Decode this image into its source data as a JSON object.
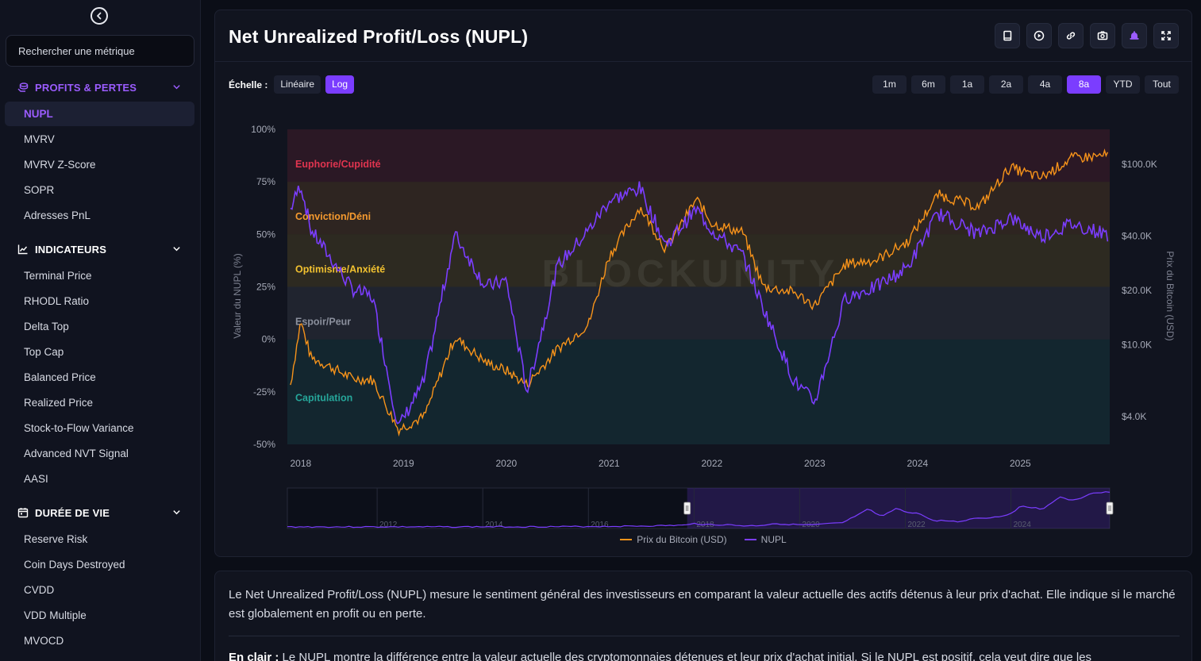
{
  "sidebar": {
    "search_placeholder": "Rechercher une métrique",
    "sections": [
      {
        "title": "PROFITS & PERTES",
        "icon": "coins-icon",
        "items": [
          "NUPL",
          "MVRV",
          "MVRV Z-Score",
          "SOPR",
          "Adresses PnL"
        ]
      },
      {
        "title": "INDICATEURS",
        "icon": "chart-line-icon",
        "items": [
          "Terminal Price",
          "RHODL Ratio",
          "Delta Top",
          "Top Cap",
          "Balanced Price",
          "Realized Price",
          "Stock-to-Flow Variance",
          "Advanced NVT Signal",
          "AASI"
        ]
      },
      {
        "title": "DURÉE DE VIE",
        "icon": "calendar-icon",
        "items": [
          "Reserve Risk",
          "Coin Days Destroyed",
          "CVDD",
          "VDD Multiple",
          "MVOCD"
        ]
      }
    ],
    "active_item": "NUPL"
  },
  "main": {
    "title": "Net Unrealized Profit/Loss (NUPL)",
    "scale_label": "Échelle :",
    "scale_options": [
      "Linéaire",
      "Log"
    ],
    "scale_active": "Log",
    "ranges": [
      "1m",
      "6m",
      "1a",
      "2a",
      "4a",
      "8a",
      "YTD",
      "Tout"
    ],
    "range_active": "8a"
  },
  "chart_data": {
    "type": "line",
    "watermark": "BLOCKUNITY",
    "ylabel_left": "Valeur du NUPL (%)",
    "ylabel_right": "Prix du Bitcoin (USD)",
    "left_ticks": [
      "100%",
      "75%",
      "50%",
      "25%",
      "0%",
      "-25%",
      "-50%"
    ],
    "left_range": [
      -50,
      100
    ],
    "right_ticks": [
      "$100.0K",
      "$40.0K",
      "$20.0K",
      "$10.0K",
      "$4.0K"
    ],
    "x_ticks": [
      "2018",
      "2019",
      "2020",
      "2021",
      "2022",
      "2023",
      "2024",
      "2025"
    ],
    "zones": [
      {
        "label": "Euphorie/Cupidité",
        "from": 75,
        "to": 100,
        "color": "#e0344f"
      },
      {
        "label": "Conviction/Déni",
        "from": 50,
        "to": 75,
        "color": "#f59a2f"
      },
      {
        "label": "Optimisme/Anxiété",
        "from": 25,
        "to": 50,
        "color": "#f2c230"
      },
      {
        "label": "Espoir/Peur",
        "from": 0,
        "to": 25,
        "color": "#8a8f9c"
      },
      {
        "label": "Capitulation",
        "from": -50,
        "to": 0,
        "color": "#26a69a"
      }
    ],
    "navigator_ticks": [
      "2012",
      "2014",
      "2016",
      "2018",
      "2020",
      "2022",
      "2024"
    ],
    "series": [
      {
        "name": "Prix du Bitcoin (USD)",
        "color": "#f7931a",
        "x": [
          2017.9,
          2018.0,
          2018.1,
          2018.3,
          2018.5,
          2018.7,
          2018.95,
          2019.2,
          2019.5,
          2019.8,
          2020.0,
          2020.2,
          2020.5,
          2020.8,
          2021.0,
          2021.3,
          2021.55,
          2021.85,
          2022.0,
          2022.3,
          2022.5,
          2022.8,
          2023.0,
          2023.3,
          2023.6,
          2023.9,
          2024.2,
          2024.6,
          2024.9,
          2025.2,
          2025.5,
          2025.85
        ],
        "y": [
          6000,
          13500,
          8500,
          7500,
          6500,
          6400,
          3400,
          4000,
          11000,
          8000,
          7200,
          6000,
          9500,
          13000,
          31000,
          58000,
          34000,
          64000,
          47000,
          42000,
          21000,
          19500,
          16500,
          28000,
          29500,
          37000,
          68000,
          58000,
          96000,
          84000,
          108000,
          112000
        ]
      },
      {
        "name": "NUPL",
        "color": "#7b3dff",
        "x": [
          2017.9,
          2018.0,
          2018.1,
          2018.3,
          2018.5,
          2018.7,
          2018.95,
          2019.2,
          2019.5,
          2019.8,
          2020.0,
          2020.2,
          2020.5,
          2020.8,
          2021.0,
          2021.3,
          2021.55,
          2021.85,
          2022.0,
          2022.3,
          2022.5,
          2022.8,
          2023.0,
          2023.3,
          2023.6,
          2023.9,
          2024.2,
          2024.6,
          2024.9,
          2025.2,
          2025.5,
          2025.85
        ],
        "y": [
          62,
          74,
          52,
          38,
          24,
          20,
          -42,
          -20,
          50,
          25,
          28,
          -25,
          35,
          52,
          66,
          72,
          45,
          62,
          52,
          40,
          15,
          -20,
          -30,
          20,
          25,
          34,
          60,
          50,
          58,
          49,
          55,
          50
        ]
      }
    ]
  },
  "legend": [
    "Prix du Bitcoin (USD)",
    "NUPL"
  ],
  "description": {
    "paragraph": "Le Net Unrealized Profit/Loss (NUPL) mesure le sentiment général des investisseurs en comparant la valeur actuelle des actifs détenus à leur prix d'achat. Elle indique si le marché est globalement en profit ou en perte.",
    "second_label": "En clair :",
    "second_text": " Le NUPL montre la différence entre la valeur actuelle des cryptomonnaies détenues et leur prix d'achat initial. Si le NUPL est positif, cela veut dire que les"
  },
  "colors": {
    "accent": "#7b3dff",
    "btc": "#f7931a",
    "nupl": "#7b3dff"
  }
}
